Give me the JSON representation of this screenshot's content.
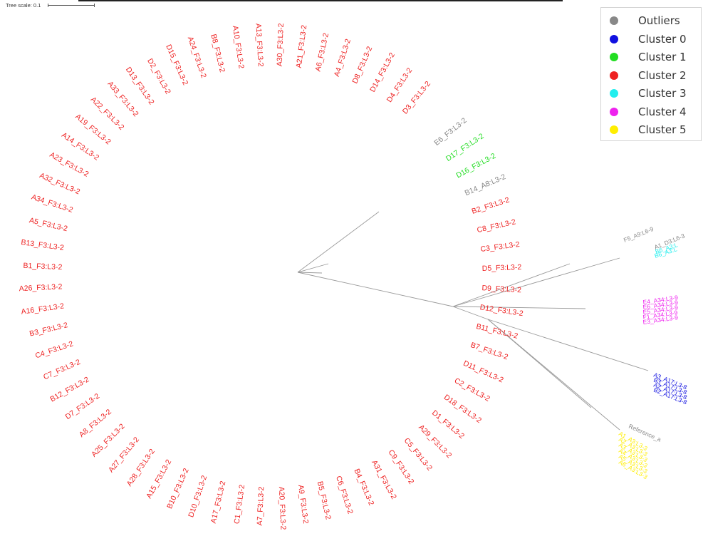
{
  "scale": {
    "label": "Tree scale: 0.1"
  },
  "legend": [
    {
      "label": "Outliers",
      "color": "#888888"
    },
    {
      "label": "Cluster 0",
      "color": "#1010e0"
    },
    {
      "label": "Cluster 1",
      "color": "#22dd22"
    },
    {
      "label": "Cluster 2",
      "color": "#ee2222"
    },
    {
      "label": "Cluster 3",
      "color": "#22eeee"
    },
    {
      "label": "Cluster 4",
      "color": "#ee22ee"
    },
    {
      "label": "Cluster 5",
      "color": "#ffee00"
    }
  ],
  "ring_tips": [
    {
      "label": "E6_F3:L3-2",
      "color": "#888888"
    },
    {
      "label": "D17_F3:L3-2",
      "color": "#22dd22"
    },
    {
      "label": "D16_F3:L3-2",
      "color": "#22dd22"
    },
    {
      "label": "B14_A8:L3-2",
      "color": "#888888"
    },
    {
      "label": "B2_F3:L3-2",
      "color": "#ee2222"
    },
    {
      "label": "C8_F3:L3-2",
      "color": "#ee2222"
    },
    {
      "label": "C3_F3:L3-2",
      "color": "#ee2222"
    },
    {
      "label": "D5_F3:L3-2",
      "color": "#ee2222"
    },
    {
      "label": "D9_F3:L3-2",
      "color": "#ee2222"
    },
    {
      "label": "D12_F3:L3-2",
      "color": "#ee2222"
    },
    {
      "label": "B11_F3:L3-2",
      "color": "#ee2222"
    },
    {
      "label": "B7_F3:L3-2",
      "color": "#ee2222"
    },
    {
      "label": "D11_F3:L3-2",
      "color": "#ee2222"
    },
    {
      "label": "C2_F3:L3-2",
      "color": "#ee2222"
    },
    {
      "label": "D18_F3:L3-2",
      "color": "#ee2222"
    },
    {
      "label": "D1_F3:L3-2",
      "color": "#ee2222"
    },
    {
      "label": "A29_F3:L3-2",
      "color": "#ee2222"
    },
    {
      "label": "C5_F3:L3-2",
      "color": "#ee2222"
    },
    {
      "label": "C9_F3:L3-2",
      "color": "#ee2222"
    },
    {
      "label": "A31_F3:L3-2",
      "color": "#ee2222"
    },
    {
      "label": "B4_F3:L3-2",
      "color": "#ee2222"
    },
    {
      "label": "C6_F3:L3-2",
      "color": "#ee2222"
    },
    {
      "label": "B5_F3:L3-2",
      "color": "#ee2222"
    },
    {
      "label": "A9_F3:L3-2",
      "color": "#ee2222"
    },
    {
      "label": "A20_F3:L3-2",
      "color": "#ee2222"
    },
    {
      "label": "A7_F3:L3-2",
      "color": "#ee2222"
    },
    {
      "label": "C1_F3:L3-2",
      "color": "#ee2222"
    },
    {
      "label": "A17_F3:L3-2",
      "color": "#ee2222"
    },
    {
      "label": "D10_F3:L3-2",
      "color": "#ee2222"
    },
    {
      "label": "B10_F3:L3-2",
      "color": "#ee2222"
    },
    {
      "label": "A15_F3:L3-2",
      "color": "#ee2222"
    },
    {
      "label": "A28_F3:L3-2",
      "color": "#ee2222"
    },
    {
      "label": "A27_F3:L3-2",
      "color": "#ee2222"
    },
    {
      "label": "A25_F3:L3-2",
      "color": "#ee2222"
    },
    {
      "label": "A8_F3:L3-2",
      "color": "#ee2222"
    },
    {
      "label": "D7_F3:L3-2",
      "color": "#ee2222"
    },
    {
      "label": "B12_F3:L3-2",
      "color": "#ee2222"
    },
    {
      "label": "C7_F3:L3-2",
      "color": "#ee2222"
    },
    {
      "label": "C4_F3:L3-2",
      "color": "#ee2222"
    },
    {
      "label": "B3_F3:L3-2",
      "color": "#ee2222"
    },
    {
      "label": "A16_F3:L3-2",
      "color": "#ee2222"
    },
    {
      "label": "A26_F3:L3-2",
      "color": "#ee2222"
    },
    {
      "label": "B1_F3:L3-2",
      "color": "#ee2222"
    },
    {
      "label": "B13_F3:L3-2",
      "color": "#ee2222"
    },
    {
      "label": "A5_F3:L3-2",
      "color": "#ee2222"
    },
    {
      "label": "A34_F3:L3-2",
      "color": "#ee2222"
    },
    {
      "label": "A32_F3:L3-2",
      "color": "#ee2222"
    },
    {
      "label": "A23_F3:L3-2",
      "color": "#ee2222"
    },
    {
      "label": "A14_F3:L3-2",
      "color": "#ee2222"
    },
    {
      "label": "A19_F3:L3-2",
      "color": "#ee2222"
    },
    {
      "label": "A22_F3:L3-2",
      "color": "#ee2222"
    },
    {
      "label": "A33_F3:L3-2",
      "color": "#ee2222"
    },
    {
      "label": "D13_F3:L3-2",
      "color": "#ee2222"
    },
    {
      "label": "D2_F3:L3-2",
      "color": "#ee2222"
    },
    {
      "label": "D15_F3:L3-2",
      "color": "#ee2222"
    },
    {
      "label": "A24_F3:L3-2",
      "color": "#ee2222"
    },
    {
      "label": "B8_F3:L3-2",
      "color": "#ee2222"
    },
    {
      "label": "A10_F3:L3-2",
      "color": "#ee2222"
    },
    {
      "label": "A13_F3:L3-2",
      "color": "#ee2222"
    },
    {
      "label": "A30_F3:L3-2",
      "color": "#ee2222"
    },
    {
      "label": "A21_F3:L3-2",
      "color": "#ee2222"
    },
    {
      "label": "A6_F3:L3-2",
      "color": "#ee2222"
    },
    {
      "label": "A4_F3:L3-2",
      "color": "#ee2222"
    },
    {
      "label": "D8_F3:L3-2",
      "color": "#ee2222"
    },
    {
      "label": "D14_F3:L3-2",
      "color": "#ee2222"
    },
    {
      "label": "D4_F3:L3-2",
      "color": "#ee2222"
    },
    {
      "label": "D3_F3:L3-2",
      "color": "#ee2222"
    }
  ],
  "side_tips": [
    {
      "label": "F5_A9:L6-9",
      "color": "#888888"
    },
    {
      "label": "A1_D3:L6-3",
      "color": "#888888"
    },
    {
      "label": "B6_A3:L",
      "color": "#22eeee"
    },
    {
      "label": "B6_A3:L",
      "color": "#22eeee"
    },
    {
      "label": "E4_A34:L3-9",
      "color": "#ee22ee"
    },
    {
      "label": "E6_A34:L3-9",
      "color": "#ee22ee"
    },
    {
      "label": "E5_A34:L3-9",
      "color": "#ee22ee"
    },
    {
      "label": "F1_A34:L3-9",
      "color": "#ee22ee"
    },
    {
      "label": "E3_A34:L3-9",
      "color": "#ee22ee"
    },
    {
      "label": "A3_A17:L3-8",
      "color": "#1010e0"
    },
    {
      "label": "B3_A17:L3-8",
      "color": "#1010e0"
    },
    {
      "label": "A2_A17:L3-8",
      "color": "#1010e0"
    },
    {
      "label": "B2_A17:L3-8",
      "color": "#1010e0"
    },
    {
      "label": "Reference_a",
      "color": "#888888"
    },
    {
      "label": "A1_A3:L3-3",
      "color": "#ffee00"
    },
    {
      "label": "A2_A3:L3-3",
      "color": "#ffee00"
    },
    {
      "label": "A3_A3:L3-3",
      "color": "#ffee00"
    },
    {
      "label": "A4_A3:L3-3",
      "color": "#ffee00"
    },
    {
      "label": "A5_A3:L3-3",
      "color": "#ffee00"
    },
    {
      "label": "A6_A3:L3-3",
      "color": "#ffee00"
    }
  ]
}
